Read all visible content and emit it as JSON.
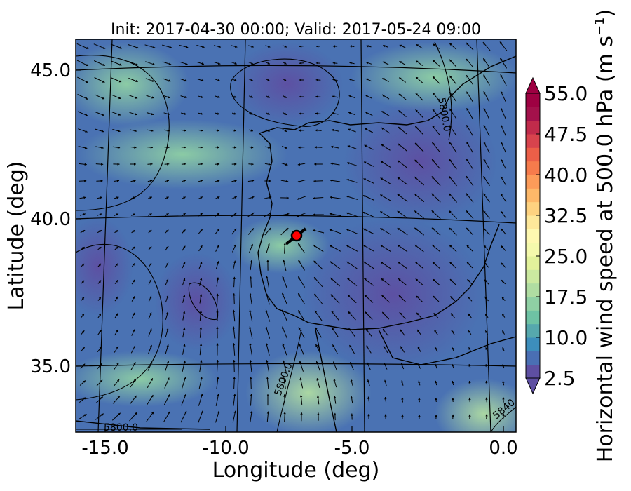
{
  "chart_data": {
    "type": "heatmap",
    "title": "Init: 2017-04-30 00:00; Valid: 2017-05-24 09:00",
    "xlabel": "Longitude (deg)",
    "ylabel": "Latitude (deg)",
    "xlim": [
      -16.0,
      0.3
    ],
    "ylim": [
      32.8,
      46.0
    ],
    "x_ticks": [
      "-15.0",
      "-10.0",
      "-5.0",
      "0.0"
    ],
    "y_ticks": [
      "45.0",
      "40.0",
      "35.0"
    ],
    "colorbar": {
      "label": "Horizontal wind speed at 500.0 hPa (m s",
      "label_exp": "−1",
      "label_end": ")",
      "range": [
        2.5,
        55.0
      ],
      "tick_labels": [
        "55.0",
        "47.5",
        "40.0",
        "32.5",
        "25.0",
        "17.5",
        "10.0",
        "2.5"
      ],
      "colors": [
        "#5e4fa2",
        "#4a6fb4",
        "#3d8ebc",
        "#56a8ad",
        "#6ec2a4",
        "#8fd0a4",
        "#b0dda2",
        "#cbe9a0",
        "#e2f29b",
        "#f4f9ac",
        "#fef8b0",
        "#fee89a",
        "#fed280",
        "#fdb869",
        "#fc9b59",
        "#f67b4c",
        "#ec5f48",
        "#d8434d",
        "#c12b4b",
        "#a3114b",
        "#9e0142"
      ]
    },
    "contour_labels": [
      "5800.0",
      "5800.0",
      "5800.0",
      "5840"
    ],
    "marker": {
      "lon": -7.7,
      "lat": 39.35,
      "color": "#ff0000"
    }
  }
}
